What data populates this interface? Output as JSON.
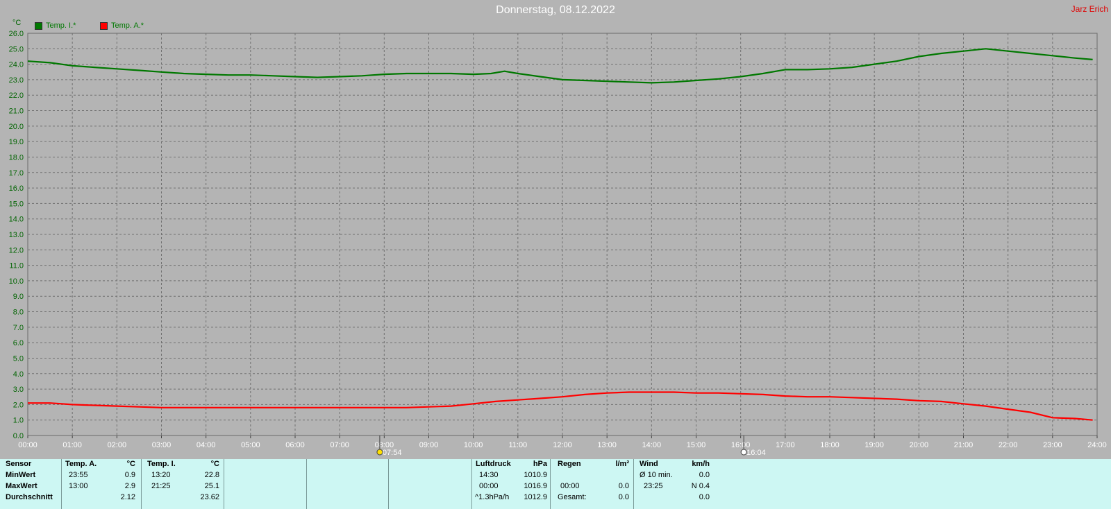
{
  "title": "Donnerstag, 08.12.2022",
  "author": "Jarz Erich",
  "unit": "°C",
  "colors": {
    "indoor": "#007800",
    "outdoor": "#ff0000",
    "background": "#b4b4b4",
    "grid": "#707070",
    "table_bg": "#cdf7f3"
  },
  "chart_data": {
    "type": "line",
    "title": "Donnerstag, 08.12.2022",
    "ylabel": "°C",
    "ylim": [
      0,
      26
    ],
    "y_ticks": [
      "0.0",
      "1.0",
      "2.0",
      "3.0",
      "4.0",
      "5.0",
      "6.0",
      "7.0",
      "8.0",
      "9.0",
      "10.0",
      "11.0",
      "12.0",
      "13.0",
      "14.0",
      "15.0",
      "16.0",
      "17.0",
      "18.0",
      "19.0",
      "20.0",
      "21.0",
      "22.0",
      "23.0",
      "24.0",
      "25.0",
      "26.0"
    ],
    "x_ticks": [
      "00:00",
      "01:00",
      "02:00",
      "03:00",
      "04:00",
      "05:00",
      "06:00",
      "07:00",
      "08:00",
      "09:00",
      "10:00",
      "11:00",
      "12:00",
      "13:00",
      "14:00",
      "15:00",
      "16:00",
      "17:00",
      "18:00",
      "19:00",
      "20:00",
      "21:00",
      "22:00",
      "23:00",
      "24:00"
    ],
    "grid": true,
    "legend_position": "top-left",
    "sunrise": {
      "label": "07:54",
      "hour": 7.9
    },
    "sunset": {
      "label": "16:04",
      "hour": 16.07
    },
    "series": [
      {
        "name": "Temp. I.*",
        "color": "#007800",
        "x": [
          0,
          0.5,
          1,
          1.5,
          2,
          2.5,
          3,
          3.5,
          4,
          4.5,
          5,
          5.5,
          6,
          6.5,
          7,
          7.5,
          8,
          8.5,
          9,
          9.5,
          10,
          10.4,
          10.7,
          11,
          11.5,
          12,
          12.5,
          13,
          13.5,
          14,
          14.5,
          15,
          15.5,
          16,
          16.5,
          17,
          17.5,
          18,
          18.5,
          19,
          19.5,
          20,
          20.5,
          21,
          21.5,
          22,
          22.5,
          23,
          23.5,
          23.9
        ],
        "values": [
          24.2,
          24.1,
          23.9,
          23.8,
          23.7,
          23.6,
          23.5,
          23.4,
          23.35,
          23.3,
          23.3,
          23.25,
          23.2,
          23.15,
          23.2,
          23.25,
          23.35,
          23.4,
          23.4,
          23.4,
          23.35,
          23.4,
          23.55,
          23.4,
          23.2,
          23.0,
          22.95,
          22.9,
          22.85,
          22.8,
          22.85,
          22.95,
          23.05,
          23.2,
          23.4,
          23.65,
          23.65,
          23.7,
          23.8,
          24.0,
          24.2,
          24.5,
          24.7,
          24.85,
          25.0,
          24.85,
          24.7,
          24.55,
          24.4,
          24.3
        ]
      },
      {
        "name": "Temp. A.*",
        "color": "#ff0000",
        "x": [
          0,
          0.5,
          1,
          1.5,
          2,
          2.5,
          3,
          3.5,
          4,
          4.5,
          5,
          5.5,
          6,
          6.5,
          7,
          7.5,
          8,
          8.5,
          9,
          9.5,
          10,
          10.5,
          11,
          11.5,
          12,
          12.5,
          13,
          13.5,
          14,
          14.5,
          15,
          15.5,
          16,
          16.5,
          17,
          17.5,
          18,
          18.5,
          19,
          19.5,
          20,
          20.5,
          21,
          21.5,
          22,
          22.5,
          23,
          23.5,
          23.9
        ],
        "values": [
          2.1,
          2.1,
          2.0,
          1.95,
          1.9,
          1.85,
          1.8,
          1.8,
          1.8,
          1.8,
          1.8,
          1.8,
          1.8,
          1.8,
          1.8,
          1.8,
          1.8,
          1.8,
          1.85,
          1.9,
          2.05,
          2.2,
          2.3,
          2.4,
          2.5,
          2.65,
          2.75,
          2.8,
          2.8,
          2.8,
          2.75,
          2.75,
          2.7,
          2.65,
          2.55,
          2.5,
          2.5,
          2.45,
          2.4,
          2.35,
          2.25,
          2.2,
          2.05,
          1.9,
          1.7,
          1.5,
          1.15,
          1.1,
          1.0
        ]
      }
    ]
  },
  "table": {
    "sensor": {
      "header": "Sensor",
      "rows": [
        "MinWert",
        "MaxWert",
        "Durchschnitt"
      ]
    },
    "temp_a": {
      "header": "Temp. A.",
      "unit": "°C",
      "min_time": "23:55",
      "min": "0.9",
      "max_time": "13:00",
      "max": "2.9",
      "avg": "2.12"
    },
    "temp_i": {
      "header": "Temp. I.",
      "unit": "°C",
      "min_time": "13:20",
      "min": "22.8",
      "max_time": "21:25",
      "max": "25.1",
      "avg": "23.62"
    },
    "pressure": {
      "header": "Luftdruck",
      "unit": "hPa",
      "r1_label": "14:30",
      "r1": "1010.9",
      "r2_label": "00:00",
      "r2": "1016.9",
      "r3_label": "^1.3hPa/h",
      "r3": "1012.9"
    },
    "rain": {
      "header": "Regen",
      "unit": "l/m²",
      "r2_label": "00:00",
      "r2": "0.0",
      "r3_label": "Gesamt:",
      "r3": "0.0"
    },
    "wind": {
      "header": "Wind",
      "unit": "km/h",
      "r1_label": "Ø 10 min.",
      "r1": "0.0",
      "r2_label": "23:25",
      "r2": "N 0.4",
      "r3": "0.0"
    }
  }
}
